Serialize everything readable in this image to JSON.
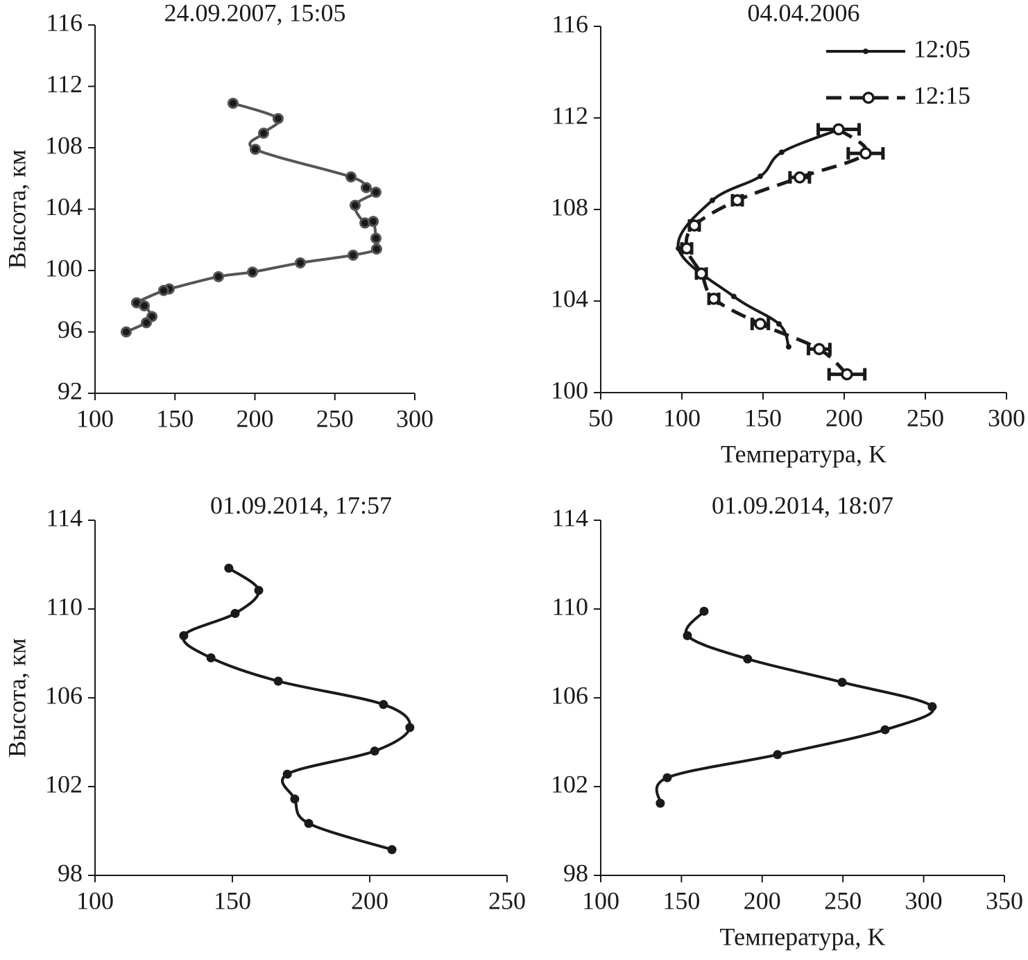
{
  "chart_data": [
    {
      "type": "line",
      "title": "24.09.2007, 15:05",
      "ylabel": "Высота, км",
      "xlim": [
        100,
        300
      ],
      "xticks": [
        100,
        150,
        200,
        250,
        300
      ],
      "ylim": [
        92,
        116
      ],
      "yticks": [
        92,
        96,
        100,
        104,
        108,
        112,
        116
      ],
      "series": [
        {
          "color": "#555555",
          "marker": "dot",
          "dashed": false,
          "x": [
            186.3,
            214.5,
            205.4,
            200.2,
            260.1,
            269.6,
            275.7,
            262.7,
            268.8,
            274,
            275.7,
            276.1,
            261.4,
            228.4,
            198.5,
            177.2,
            146.4,
            142.9,
            126,
            130.8,
            135.6,
            132.1,
            119.5
          ],
          "values": [
            110.9,
            109.9,
            108.95,
            107.9,
            106.1,
            105.4,
            105.1,
            104.25,
            103.1,
            103.2,
            102.1,
            101.4,
            101.0,
            100.5,
            99.9,
            99.6,
            98.8,
            98.7,
            97.9,
            97.7,
            97.0,
            96.6,
            96.0
          ]
        }
      ]
    },
    {
      "type": "line",
      "title": "04.04.2006",
      "xlabel": "Температура, K",
      "xlim": [
        50,
        300
      ],
      "xticks": [
        50,
        100,
        150,
        200,
        250,
        300
      ],
      "ylim": [
        100,
        116
      ],
      "yticks": [
        100,
        104,
        108,
        112,
        116
      ],
      "legend": "upper right",
      "series": [
        {
          "name": "12:05",
          "color": "#1a1a1a",
          "marker": "dot",
          "dashed": false,
          "x": [
            197,
            161.5,
            148.3,
            118.8,
            97.9,
            132,
            159.8,
            165.8
          ],
          "values": [
            111.5,
            110.5,
            109.45,
            108.4,
            106.3,
            104.2,
            103.0,
            102.0
          ]
        },
        {
          "name": "12:15",
          "color": "#1a1a1a",
          "marker": "circle",
          "dashed": true,
          "x": [
            196.6,
            213.2,
            172.6,
            134.2,
            107.7,
            103,
            112,
            119.7,
            148.3,
            184.6,
            201.7
          ],
          "values": [
            111.5,
            110.45,
            109.4,
            108.4,
            107.3,
            106.3,
            105.2,
            104.1,
            103.0,
            101.9,
            100.8
          ],
          "xerr": [
            12.6,
            10.7,
            6,
            3,
            3,
            3,
            3,
            3,
            5,
            6.6,
            11
          ]
        }
      ]
    },
    {
      "type": "line",
      "title": "01.09.2014, 17:57",
      "ylabel": "Высота, км",
      "xlim": [
        100,
        250
      ],
      "xticks": [
        100,
        150,
        200,
        250
      ],
      "ylim": [
        98,
        114
      ],
      "yticks": [
        98,
        102,
        106,
        110,
        114
      ],
      "series": [
        {
          "color": "#1a1a1a",
          "marker": "dot",
          "dashed": false,
          "x": [
            148.7,
            159.6,
            151,
            132.3,
            142.2,
            166.7,
            205,
            214.6,
            201.8,
            170,
            172.7,
            177.8,
            208.1
          ],
          "values": [
            111.84,
            110.84,
            109.8,
            108.8,
            107.8,
            106.75,
            105.7,
            104.66,
            103.6,
            102.56,
            101.44,
            100.34,
            99.16
          ]
        }
      ]
    },
    {
      "type": "line",
      "title": "01.09.2014, 18:07",
      "xlabel": "Температура, K",
      "xlim": [
        100,
        350
      ],
      "xticks": [
        100,
        150,
        200,
        250,
        300,
        350
      ],
      "ylim": [
        98,
        114
      ],
      "yticks": [
        98,
        102,
        106,
        110,
        114
      ],
      "series": [
        {
          "color": "#1a1a1a",
          "marker": "dot",
          "dashed": false,
          "x": [
            164,
            153.7,
            191,
            249.5,
            305.3,
            276.1,
            209.5,
            141.2,
            136.9
          ],
          "values": [
            109.9,
            108.8,
            107.75,
            106.7,
            105.6,
            104.56,
            103.44,
            102.4,
            101.25
          ]
        }
      ]
    }
  ]
}
